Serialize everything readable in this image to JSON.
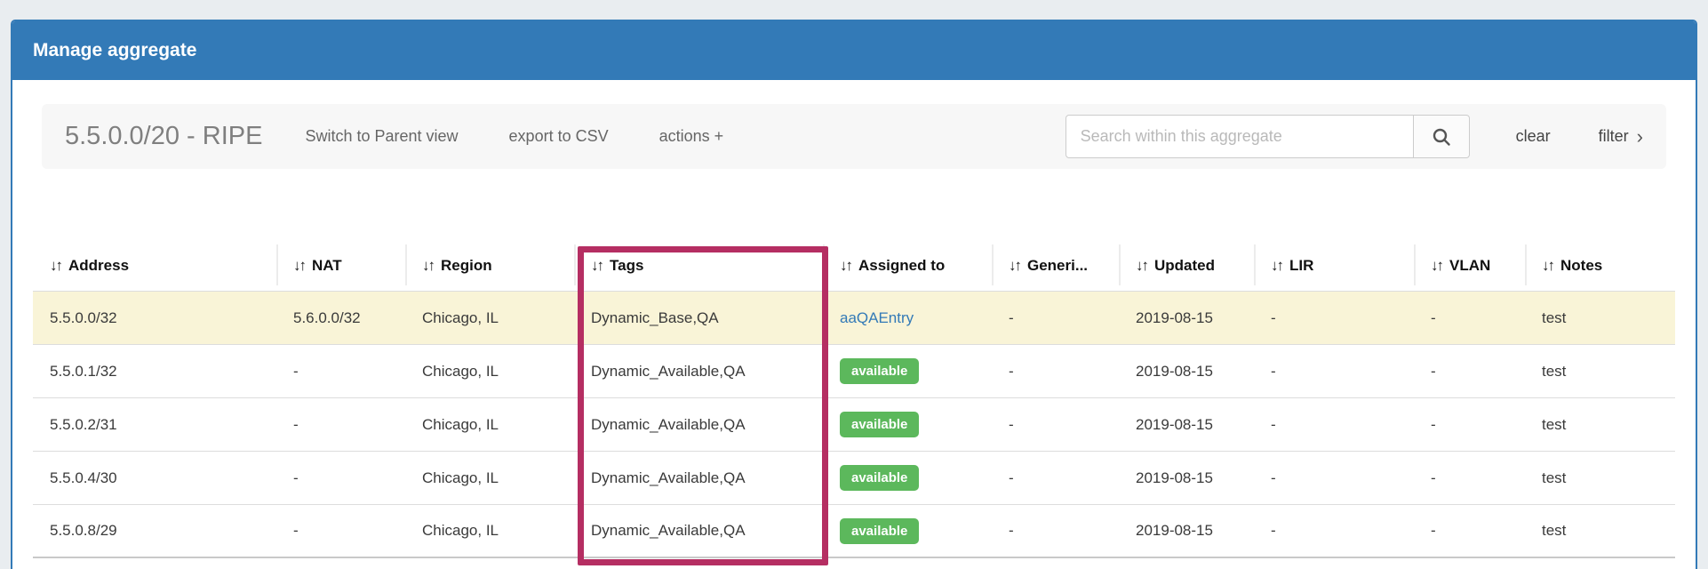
{
  "page": {
    "title": "Manage aggregate"
  },
  "toolbar": {
    "aggregate_label": "5.5.0.0/20 - RIPE",
    "switch_view": "Switch to Parent view",
    "export_csv": "export to CSV",
    "actions": "actions +",
    "search_placeholder": "Search within this aggregate",
    "search_value": "",
    "clear": "clear",
    "filter": "filter",
    "filter_chevron": "›"
  },
  "table": {
    "sort_icon": "↓↑",
    "columns": [
      {
        "key": "address",
        "label": "Address"
      },
      {
        "key": "nat",
        "label": "NAT"
      },
      {
        "key": "region",
        "label": "Region"
      },
      {
        "key": "tags",
        "label": "Tags",
        "annotated": true
      },
      {
        "key": "assigned",
        "label": "Assigned to"
      },
      {
        "key": "generic",
        "label": "Generi..."
      },
      {
        "key": "updated",
        "label": "Updated"
      },
      {
        "key": "lir",
        "label": "LIR"
      },
      {
        "key": "vlan",
        "label": "VLAN"
      },
      {
        "key": "notes",
        "label": "Notes"
      }
    ],
    "rows": [
      {
        "address": "5.5.0.0/32",
        "nat": "5.6.0.0/32",
        "region": "Chicago, IL",
        "tags": "Dynamic_Base,QA",
        "assigned": {
          "type": "link",
          "label": "aaQAEntry"
        },
        "generic": "-",
        "updated": "2019-08-15",
        "lir": "-",
        "vlan": "-",
        "notes": "test",
        "highlighted": true
      },
      {
        "address": "5.5.0.1/32",
        "nat": "-",
        "region": "Chicago, IL",
        "tags": "Dynamic_Available,QA",
        "assigned": {
          "type": "badge",
          "label": "available"
        },
        "generic": "-",
        "updated": "2019-08-15",
        "lir": "-",
        "vlan": "-",
        "notes": "test",
        "highlighted": false
      },
      {
        "address": "5.5.0.2/31",
        "nat": "-",
        "region": "Chicago, IL",
        "tags": "Dynamic_Available,QA",
        "assigned": {
          "type": "badge",
          "label": "available"
        },
        "generic": "-",
        "updated": "2019-08-15",
        "lir": "-",
        "vlan": "-",
        "notes": "test",
        "highlighted": false
      },
      {
        "address": "5.5.0.4/30",
        "nat": "-",
        "region": "Chicago, IL",
        "tags": "Dynamic_Available,QA",
        "assigned": {
          "type": "badge",
          "label": "available"
        },
        "generic": "-",
        "updated": "2019-08-15",
        "lir": "-",
        "vlan": "-",
        "notes": "test",
        "highlighted": false
      },
      {
        "address": "5.5.0.8/29",
        "nat": "-",
        "region": "Chicago, IL",
        "tags": "Dynamic_Available,QA",
        "assigned": {
          "type": "badge",
          "label": "available"
        },
        "generic": "-",
        "updated": "2019-08-15",
        "lir": "-",
        "vlan": "-",
        "notes": "test",
        "highlighted": false
      }
    ]
  },
  "colors": {
    "panel_blue": "#337ab7",
    "badge_green": "#5cb85c",
    "highlight_row_yellow": "#f9f4d7",
    "annotation_magenta": "#b52e62",
    "link_blue": "#337ab7",
    "toolbar_gray": "#f7f7f7"
  }
}
